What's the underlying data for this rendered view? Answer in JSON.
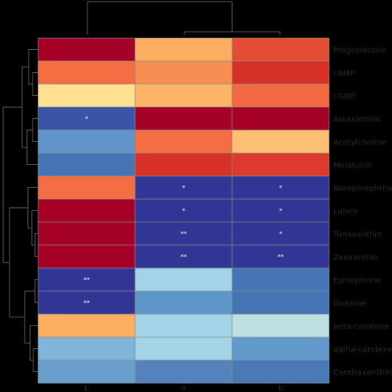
{
  "chart_data": {
    "type": "heatmap",
    "rows": [
      "Progesterone",
      "cAMP",
      "cGMP",
      "Astaxanthin",
      "Acetylcholine",
      "Melatonin",
      "Norepinephrine",
      "Lutein",
      "Tunaxanthin",
      "Zeaxanthin",
      "Epinephrine",
      "Guanine",
      "beta-carotene",
      "alpha-carotene",
      "Canthaxanthin"
    ],
    "columns": [
      "L",
      "a",
      "b"
    ],
    "colorscale": {
      "low": "#313695",
      "mid": "#ffffbf",
      "high": "#a50026"
    },
    "values": [
      [
        0.9,
        0.45,
        0.6
      ],
      [
        0.6,
        0.5,
        0.8
      ],
      [
        0.2,
        0.4,
        0.55
      ],
      [
        -0.8,
        0.9,
        0.9
      ],
      [
        -0.5,
        0.55,
        0.35
      ],
      [
        -0.6,
        0.75,
        0.7
      ],
      [
        0.55,
        -0.95,
        -0.95
      ],
      [
        0.9,
        -0.95,
        -0.95
      ],
      [
        0.9,
        -0.95,
        -0.95
      ],
      [
        0.9,
        -0.95,
        -0.95
      ],
      [
        -0.9,
        -0.25,
        -0.65
      ],
      [
        -0.9,
        -0.5,
        -0.65
      ],
      [
        0.4,
        -0.25,
        -0.1
      ],
      [
        -0.4,
        -0.25,
        -0.5
      ],
      [
        -0.5,
        -0.55,
        -0.6
      ]
    ],
    "cell_colors": [
      [
        "#a50026",
        "#fdae61",
        "#e34d33"
      ],
      [
        "#f46d43",
        "#f88d52",
        "#d73027"
      ],
      [
        "#fee090",
        "#fdb466",
        "#f26841"
      ],
      [
        "#3a55a8",
        "#a50026",
        "#a50026"
      ],
      [
        "#5f95c8",
        "#f46d43",
        "#fdbf71"
      ],
      [
        "#4575b4",
        "#d73027",
        "#dc3a2c"
      ],
      [
        "#f46d43",
        "#313695",
        "#313695"
      ],
      [
        "#a50026",
        "#313695",
        "#313695"
      ],
      [
        "#a50026",
        "#313695",
        "#313695"
      ],
      [
        "#a50026",
        "#313695",
        "#313695"
      ],
      [
        "#313695",
        "#a3d3e6",
        "#4575b4"
      ],
      [
        "#313695",
        "#5e96c9",
        "#4575b4"
      ],
      [
        "#fdae61",
        "#a3d3e6",
        "#bfe0e0"
      ],
      [
        "#7eb5d9",
        "#a3d3e6",
        "#6199cb"
      ],
      [
        "#689fcd",
        "#5581bd",
        "#4a79b6"
      ]
    ],
    "significance": [
      [
        "",
        "",
        ""
      ],
      [
        "",
        "",
        ""
      ],
      [
        "",
        "",
        ""
      ],
      [
        "*",
        "",
        ""
      ],
      [
        "",
        "",
        ""
      ],
      [
        "",
        "",
        ""
      ],
      [
        "",
        "*",
        "*"
      ],
      [
        "",
        "*",
        "*"
      ],
      [
        "",
        "**",
        "*"
      ],
      [
        "",
        "**",
        "**"
      ],
      [
        "**",
        "",
        ""
      ],
      [
        "**",
        "",
        ""
      ],
      [
        "",
        "",
        ""
      ],
      [
        "",
        "",
        ""
      ],
      [
        "",
        "",
        ""
      ]
    ],
    "row_labels_display": [
      "Progesterone",
      "cAMP",
      "cGMP",
      "Astaxanthin",
      "Acetylcholine",
      "Melatonin",
      "Norepinephrine",
      "Lutein",
      "Tunaxanthin",
      "Zeaxanthin",
      "Epinephrine",
      "Guanine",
      "beta-carotene",
      "alpha-carotene",
      "Canthaxanthin"
    ],
    "col_labels_display": [
      "L",
      "a",
      "b"
    ],
    "legend": false,
    "grid": true,
    "dendrograms": [
      "row",
      "column"
    ]
  }
}
